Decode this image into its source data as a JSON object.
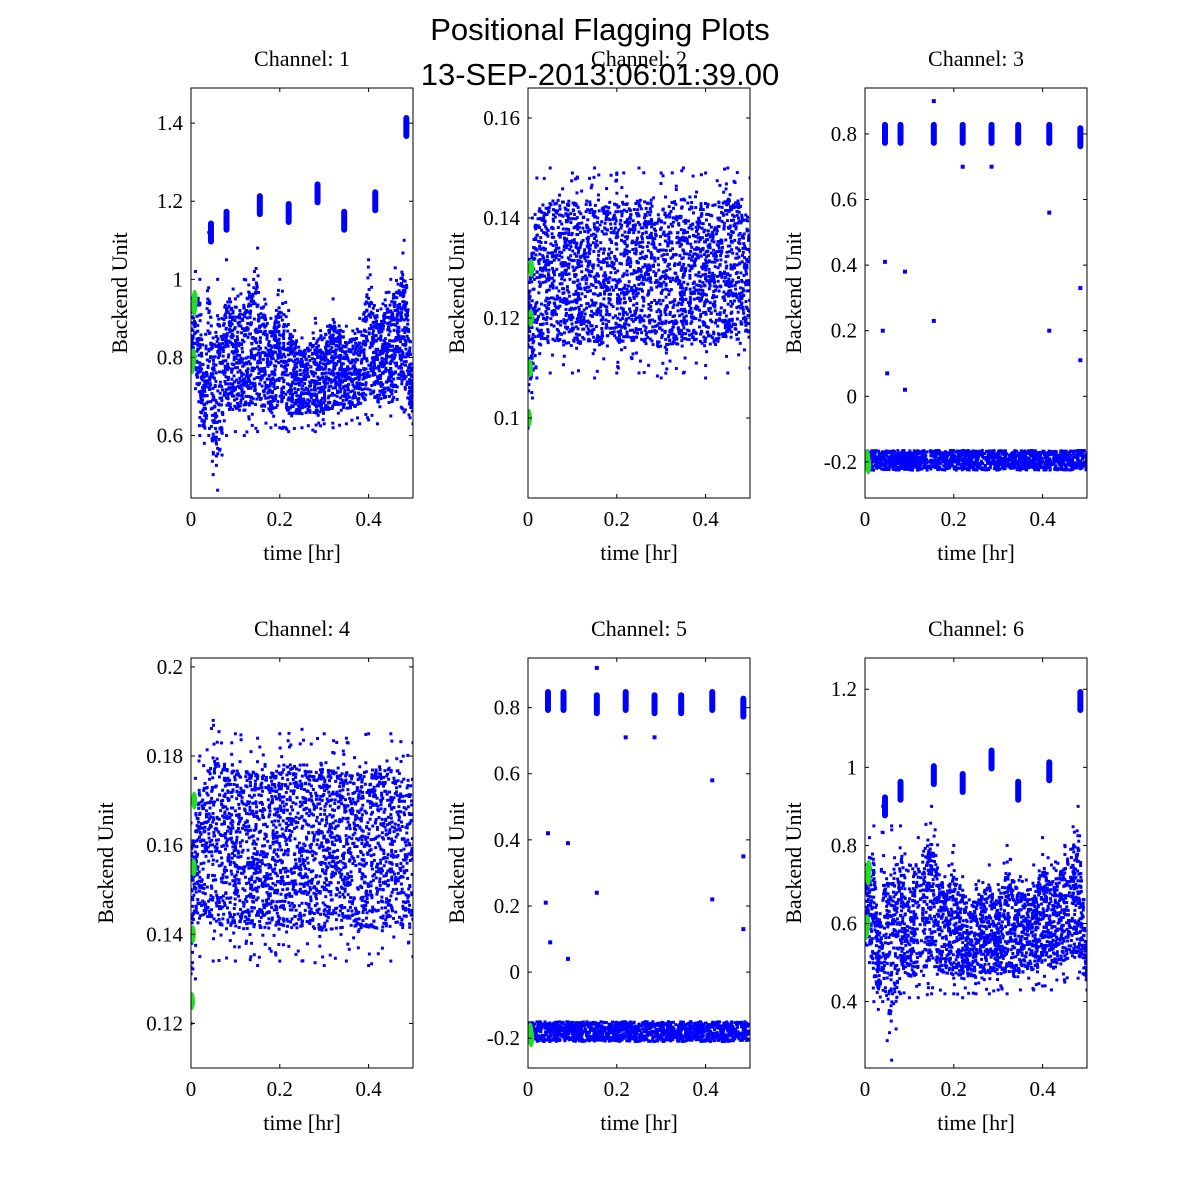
{
  "figure": {
    "title_line1": "Positional Flagging Plots",
    "title_line2": "13-SEP-2013:06:01:39.00",
    "colors": {
      "main_series": "#0000ff",
      "flagged_series": "#22dd22",
      "axes": "#000000",
      "background": "#ffffff"
    }
  },
  "chart_data": [
    {
      "type": "scatter",
      "title": "Channel: 1",
      "xlabel": "time [hr]",
      "ylabel": "Backend Unit",
      "xlim": [
        0,
        0.5
      ],
      "ylim": [
        0.44,
        1.49
      ],
      "xticks": [
        0,
        0.2,
        0.4
      ],
      "xtick_labels": [
        "0",
        "0.2",
        "0.4"
      ],
      "yticks": [
        0.6,
        0.8,
        1.0,
        1.2,
        1.4
      ],
      "ytick_labels": [
        "0.6",
        "0.8",
        "1",
        "1.2",
        "1.4"
      ],
      "series": [
        {
          "name": "data",
          "color": "#0000ff",
          "x": [
            0.0,
            0.01,
            0.02,
            0.03,
            0.04,
            0.05,
            0.06,
            0.07,
            0.08,
            0.1,
            0.12,
            0.15,
            0.18,
            0.2,
            0.22,
            0.25,
            0.28,
            0.3,
            0.32,
            0.35,
            0.38,
            0.4,
            0.42,
            0.45,
            0.48,
            0.5
          ],
          "y_low": [
            0.78,
            0.72,
            0.6,
            0.58,
            0.6,
            0.5,
            0.46,
            0.55,
            0.6,
            0.61,
            0.6,
            0.61,
            0.62,
            0.62,
            0.61,
            0.62,
            0.61,
            0.63,
            0.62,
            0.63,
            0.63,
            0.64,
            0.63,
            0.65,
            0.66,
            0.63
          ],
          "y_high": [
            0.95,
            1.02,
            1.0,
            0.75,
            1.12,
            0.85,
            1.0,
            0.9,
            1.05,
            0.95,
            1.0,
            1.08,
            0.9,
            1.0,
            0.92,
            0.85,
            0.9,
            0.85,
            0.95,
            0.88,
            0.9,
            1.05,
            0.92,
            1.0,
            1.1,
            0.75
          ]
        },
        {
          "name": "outlier clusters",
          "color": "#0000ff",
          "x": [
            0.045,
            0.08,
            0.155,
            0.22,
            0.285,
            0.345,
            0.415,
            0.485
          ],
          "y": [
            1.12,
            1.15,
            1.19,
            1.17,
            1.22,
            1.15,
            1.2,
            1.39
          ]
        },
        {
          "name": "flagged",
          "color": "#22dd22",
          "x": [
            0.0,
            0.003,
            0.005,
            0.006
          ],
          "y": [
            0.78,
            0.8,
            0.93,
            0.95
          ]
        }
      ]
    },
    {
      "type": "scatter",
      "title": "Channel: 2",
      "xlabel": "time [hr]",
      "ylabel": "Backend Unit",
      "xlim": [
        0,
        0.5
      ],
      "ylim": [
        0.084,
        0.166
      ],
      "xticks": [
        0,
        0.2,
        0.4
      ],
      "xtick_labels": [
        "0",
        "0.2",
        "0.4"
      ],
      "yticks": [
        0.1,
        0.12,
        0.14,
        0.16
      ],
      "ytick_labels": [
        "0.1",
        "0.12",
        "0.14",
        "0.16"
      ],
      "series": [
        {
          "name": "data",
          "color": "#0000ff",
          "x": [
            0.0,
            0.01,
            0.02,
            0.05,
            0.1,
            0.15,
            0.2,
            0.25,
            0.3,
            0.35,
            0.4,
            0.45,
            0.5
          ],
          "y_low": [
            0.098,
            0.104,
            0.108,
            0.109,
            0.109,
            0.108,
            0.109,
            0.109,
            0.108,
            0.109,
            0.108,
            0.109,
            0.11
          ],
          "y_high": [
            0.13,
            0.14,
            0.148,
            0.15,
            0.149,
            0.15,
            0.149,
            0.15,
            0.149,
            0.15,
            0.149,
            0.15,
            0.148
          ]
        },
        {
          "name": "flagged",
          "color": "#22dd22",
          "x": [
            0.0,
            0.002,
            0.004,
            0.005
          ],
          "y": [
            0.1,
            0.11,
            0.12,
            0.13
          ]
        }
      ]
    },
    {
      "type": "scatter",
      "title": "Channel: 3",
      "xlabel": "time [hr]",
      "ylabel": "Backend Unit",
      "xlim": [
        0,
        0.5
      ],
      "ylim": [
        -0.31,
        0.94
      ],
      "xticks": [
        0,
        0.2,
        0.4
      ],
      "xtick_labels": [
        "0",
        "0.2",
        "0.4"
      ],
      "yticks": [
        -0.2,
        0,
        0.2,
        0.4,
        0.6,
        0.8
      ],
      "ytick_labels": [
        "-0.2",
        "0",
        "0.2",
        "0.4",
        "0.6",
        "0.8"
      ],
      "series": [
        {
          "name": "baseline",
          "color": "#0000ff",
          "x_range": [
            0.0,
            0.5
          ],
          "y_low": -0.225,
          "y_high": -0.165
        },
        {
          "name": "clusters",
          "color": "#0000ff",
          "x": [
            0.045,
            0.08,
            0.155,
            0.22,
            0.285,
            0.345,
            0.415,
            0.485
          ],
          "y": [
            0.8,
            0.8,
            0.8,
            0.8,
            0.8,
            0.8,
            0.8,
            0.79
          ]
        },
        {
          "name": "outliers",
          "color": "#0000ff",
          "x": [
            0.045,
            0.04,
            0.05,
            0.09,
            0.155,
            0.155,
            0.22,
            0.285,
            0.415,
            0.415,
            0.485,
            0.485,
            0.09
          ],
          "y": [
            0.41,
            0.2,
            0.07,
            0.38,
            0.23,
            0.9,
            0.7,
            0.7,
            0.56,
            0.2,
            0.33,
            0.11,
            0.02
          ]
        },
        {
          "name": "flagged",
          "color": "#22dd22",
          "x": [
            0.0,
            0.003,
            0.005
          ],
          "y": [
            -0.2,
            -0.19,
            -0.21
          ]
        }
      ]
    },
    {
      "type": "scatter",
      "title": "Channel: 4",
      "xlabel": "time [hr]",
      "ylabel": "Backend Unit",
      "xlim": [
        0,
        0.5
      ],
      "ylim": [
        0.11,
        0.202
      ],
      "xticks": [
        0,
        0.2,
        0.4
      ],
      "xtick_labels": [
        "0",
        "0.2",
        "0.4"
      ],
      "yticks": [
        0.12,
        0.14,
        0.16,
        0.18,
        0.2
      ],
      "ytick_labels": [
        "0.12",
        "0.14",
        "0.16",
        "0.18",
        "0.2"
      ],
      "series": [
        {
          "name": "data",
          "color": "#0000ff",
          "x": [
            0.0,
            0.01,
            0.02,
            0.05,
            0.1,
            0.15,
            0.2,
            0.25,
            0.3,
            0.35,
            0.4,
            0.45,
            0.5
          ],
          "y_low": [
            0.12,
            0.13,
            0.135,
            0.134,
            0.134,
            0.133,
            0.134,
            0.134,
            0.133,
            0.134,
            0.133,
            0.134,
            0.135
          ],
          "y_high": [
            0.165,
            0.175,
            0.18,
            0.188,
            0.185,
            0.184,
            0.185,
            0.186,
            0.185,
            0.184,
            0.185,
            0.185,
            0.183
          ]
        },
        {
          "name": "flagged",
          "color": "#22dd22",
          "x": [
            0.0,
            0.002,
            0.004,
            0.005
          ],
          "y": [
            0.125,
            0.14,
            0.155,
            0.17
          ]
        }
      ]
    },
    {
      "type": "scatter",
      "title": "Channel: 5",
      "xlabel": "time [hr]",
      "ylabel": "Backend Unit",
      "xlim": [
        0,
        0.5
      ],
      "ylim": [
        -0.29,
        0.95
      ],
      "xticks": [
        0,
        0.2,
        0.4
      ],
      "xtick_labels": [
        "0",
        "0.2",
        "0.4"
      ],
      "yticks": [
        -0.2,
        0,
        0.2,
        0.4,
        0.6,
        0.8
      ],
      "ytick_labels": [
        "-0.2",
        "0",
        "0.2",
        "0.4",
        "0.6",
        "0.8"
      ],
      "series": [
        {
          "name": "baseline",
          "color": "#0000ff",
          "x_range": [
            0.0,
            0.5
          ],
          "y_low": -0.21,
          "y_high": -0.15
        },
        {
          "name": "clusters",
          "color": "#0000ff",
          "x": [
            0.045,
            0.08,
            0.155,
            0.22,
            0.285,
            0.345,
            0.415,
            0.485
          ],
          "y": [
            0.82,
            0.82,
            0.81,
            0.82,
            0.81,
            0.81,
            0.82,
            0.8
          ]
        },
        {
          "name": "outliers",
          "color": "#0000ff",
          "x": [
            0.045,
            0.04,
            0.05,
            0.09,
            0.155,
            0.155,
            0.22,
            0.285,
            0.415,
            0.415,
            0.485,
            0.485,
            0.09
          ],
          "y": [
            0.42,
            0.21,
            0.09,
            0.39,
            0.24,
            0.92,
            0.71,
            0.71,
            0.58,
            0.22,
            0.35,
            0.13,
            0.04
          ]
        },
        {
          "name": "flagged",
          "color": "#22dd22",
          "x": [
            0.0,
            0.003,
            0.005
          ],
          "y": [
            -0.19,
            -0.18,
            -0.2
          ]
        }
      ]
    },
    {
      "type": "scatter",
      "title": "Channel: 6",
      "xlabel": "time [hr]",
      "ylabel": "Backend Unit",
      "xlim": [
        0,
        0.5
      ],
      "ylim": [
        0.23,
        1.28
      ],
      "xticks": [
        0,
        0.2,
        0.4
      ],
      "xtick_labels": [
        "0",
        "0.2",
        "0.4"
      ],
      "yticks": [
        0.4,
        0.6,
        0.8,
        1.0,
        1.2
      ],
      "ytick_labels": [
        "0.4",
        "0.6",
        "0.8",
        "1",
        "1.2"
      ],
      "series": [
        {
          "name": "data",
          "color": "#0000ff",
          "x": [
            0.0,
            0.01,
            0.02,
            0.03,
            0.04,
            0.05,
            0.06,
            0.07,
            0.08,
            0.1,
            0.12,
            0.15,
            0.18,
            0.2,
            0.22,
            0.25,
            0.28,
            0.3,
            0.32,
            0.35,
            0.38,
            0.4,
            0.42,
            0.45,
            0.48,
            0.5
          ],
          "y_low": [
            0.55,
            0.5,
            0.4,
            0.38,
            0.4,
            0.3,
            0.25,
            0.33,
            0.42,
            0.41,
            0.41,
            0.42,
            0.42,
            0.42,
            0.41,
            0.42,
            0.42,
            0.43,
            0.42,
            0.43,
            0.43,
            0.44,
            0.43,
            0.45,
            0.46,
            0.43
          ],
          "y_high": [
            0.75,
            0.82,
            0.85,
            0.6,
            0.9,
            0.7,
            0.85,
            0.75,
            0.85,
            0.75,
            0.82,
            0.9,
            0.72,
            0.8,
            0.72,
            0.7,
            0.75,
            0.7,
            0.8,
            0.72,
            0.75,
            0.82,
            0.75,
            0.8,
            0.9,
            0.55
          ]
        },
        {
          "name": "outlier clusters",
          "color": "#0000ff",
          "x": [
            0.045,
            0.08,
            0.155,
            0.22,
            0.285,
            0.345,
            0.415,
            0.485
          ],
          "y": [
            0.9,
            0.94,
            0.98,
            0.96,
            1.02,
            0.94,
            0.99,
            1.17
          ]
        },
        {
          "name": "flagged",
          "color": "#22dd22",
          "x": [
            0.0,
            0.003,
            0.005,
            0.006
          ],
          "y": [
            0.58,
            0.6,
            0.72,
            0.74
          ]
        }
      ]
    }
  ]
}
